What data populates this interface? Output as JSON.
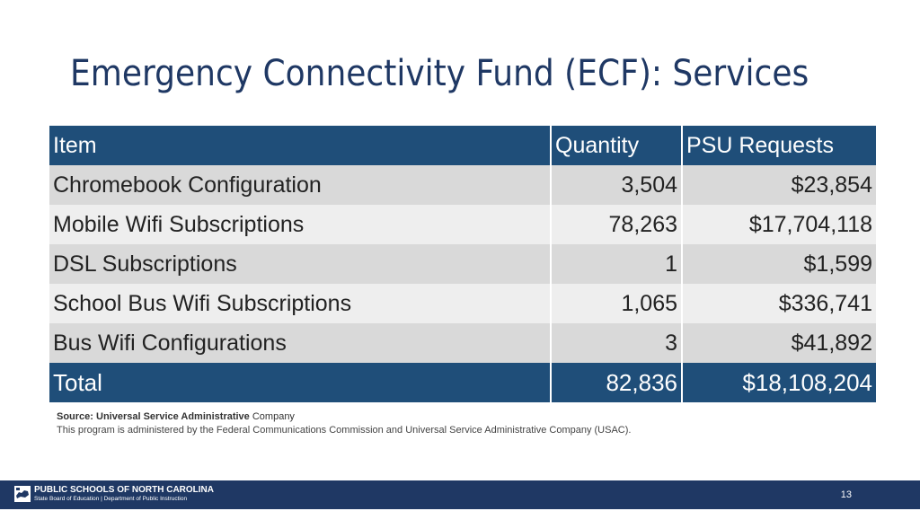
{
  "slide": {
    "title": "Emergency Connectivity Fund (ECF): Services"
  },
  "table": {
    "headers": [
      "Item",
      "Quantity",
      "PSU Requests"
    ],
    "rows": [
      {
        "item": "Chromebook Configuration",
        "quantity": "3,504",
        "psu_requests": "$23,854"
      },
      {
        "item": "Mobile Wifi Subscriptions",
        "quantity": "78,263",
        "psu_requests": "$17,704,118"
      },
      {
        "item": "DSL Subscriptions",
        "quantity": "1",
        "psu_requests": "$1,599"
      },
      {
        "item": "School Bus Wifi Subscriptions",
        "quantity": "1,065",
        "psu_requests": "$336,741"
      },
      {
        "item": "Bus Wifi Configurations",
        "quantity": "3",
        "psu_requests": "$41,892"
      }
    ],
    "total": {
      "item": "Total",
      "quantity": "82,836",
      "psu_requests": "$18,108,204"
    }
  },
  "notes": {
    "source_prefix": "Source: Universal Service Administrative",
    "source_suffix": "Company",
    "program": "This program is administered by the Federal Communications Commission and Universal Service Administrative Company (USAC)."
  },
  "footer": {
    "organization": "PUBLIC SCHOOLS OF NORTH CAROLINA",
    "subtitle": "State Board of Education | Department of Public Instruction",
    "logo_icon": "nc-state-map-icon",
    "page_number": "13"
  },
  "colors": {
    "title": "#1f3864",
    "table_header": "#1f4e79",
    "row_shaded": "#d9d9d9",
    "row_light": "#eeeeee",
    "footer_bar": "#1f3864"
  }
}
